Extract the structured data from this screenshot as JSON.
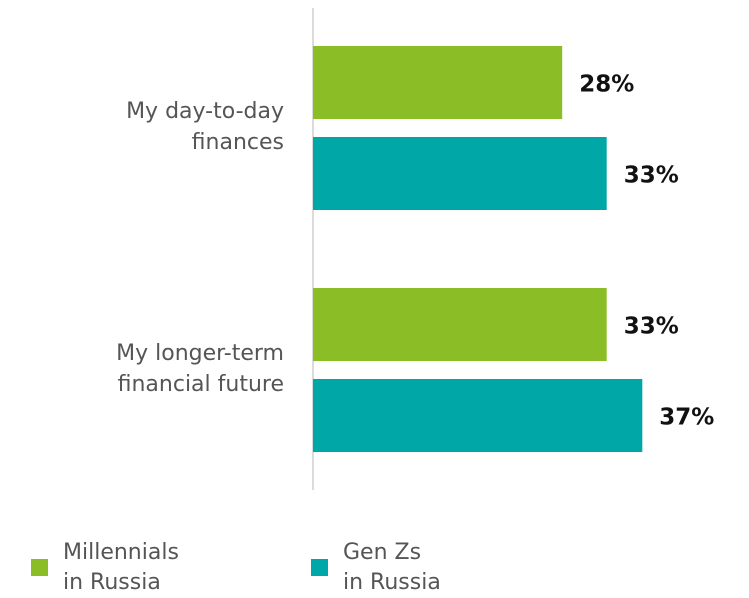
{
  "chart_data": {
    "type": "bar",
    "orientation": "horizontal",
    "categories": [
      [
        "My day-to-day",
        "finances"
      ],
      [
        "My longer-term",
        "financial future"
      ]
    ],
    "series": [
      {
        "name": [
          "Millennials",
          "in Russia"
        ],
        "values": [
          28,
          33
        ],
        "color": "#8bbd26"
      },
      {
        "name": [
          "Gen Zs",
          "in Russia"
        ],
        "values": [
          33,
          37
        ],
        "color": "#00a7a7"
      }
    ],
    "value_labels": [
      [
        "28%",
        "33%"
      ],
      [
        "33%",
        "37%"
      ]
    ],
    "xlim": [
      0,
      55
    ],
    "grid": false,
    "legend_position": "bottom"
  }
}
